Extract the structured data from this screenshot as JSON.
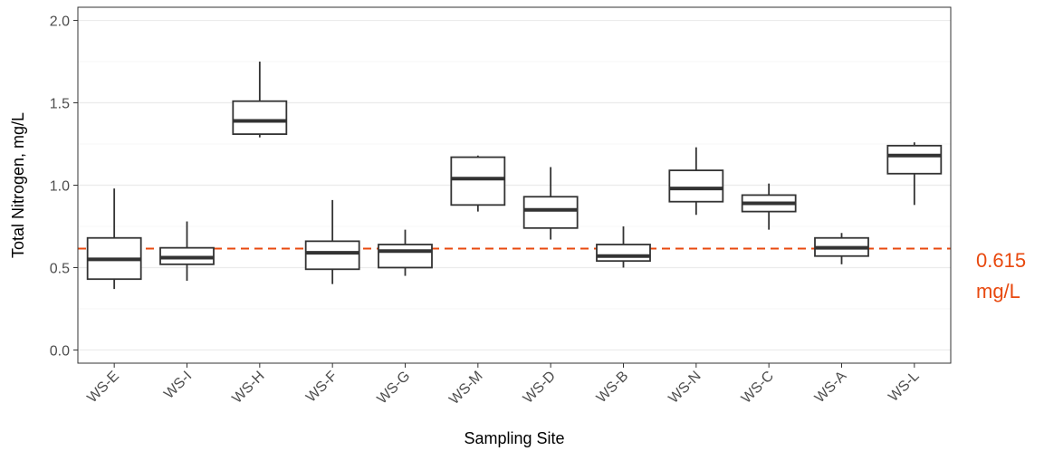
{
  "chart_data": {
    "type": "box",
    "xlabel": "Sampling Site",
    "ylabel": "Total Nitrogen, mg/L",
    "ylim": [
      -0.08,
      2.08
    ],
    "yticks": [
      0.0,
      0.5,
      1.0,
      1.5,
      2.0
    ],
    "ytick_labels": [
      "0.0",
      "0.5",
      "1.0",
      "1.5",
      "2.0"
    ],
    "grid": true,
    "categories": [
      "WS-E",
      "WS-I",
      "WS-H",
      "WS-F",
      "WS-G",
      "WS-M",
      "WS-D",
      "WS-B",
      "WS-N",
      "WS-C",
      "WS-A",
      "WS-L"
    ],
    "boxes": [
      {
        "site": "WS-E",
        "min": 0.37,
        "q1": 0.43,
        "median": 0.55,
        "q3": 0.68,
        "max": 0.98
      },
      {
        "site": "WS-I",
        "min": 0.42,
        "q1": 0.52,
        "median": 0.56,
        "q3": 0.62,
        "max": 0.78
      },
      {
        "site": "WS-H",
        "min": 1.29,
        "q1": 1.31,
        "median": 1.39,
        "q3": 1.51,
        "max": 1.75
      },
      {
        "site": "WS-F",
        "min": 0.4,
        "q1": 0.49,
        "median": 0.59,
        "q3": 0.66,
        "max": 0.91
      },
      {
        "site": "WS-G",
        "min": 0.45,
        "q1": 0.5,
        "median": 0.6,
        "q3": 0.64,
        "max": 0.73
      },
      {
        "site": "WS-M",
        "min": 0.84,
        "q1": 0.88,
        "median": 1.04,
        "q3": 1.17,
        "max": 1.18
      },
      {
        "site": "WS-D",
        "min": 0.67,
        "q1": 0.74,
        "median": 0.85,
        "q3": 0.93,
        "max": 1.11
      },
      {
        "site": "WS-B",
        "min": 0.5,
        "q1": 0.54,
        "median": 0.57,
        "q3": 0.64,
        "max": 0.75
      },
      {
        "site": "WS-N",
        "min": 0.82,
        "q1": 0.9,
        "median": 0.98,
        "q3": 1.09,
        "max": 1.23
      },
      {
        "site": "WS-C",
        "min": 0.73,
        "q1": 0.84,
        "median": 0.89,
        "q3": 0.94,
        "max": 1.01
      },
      {
        "site": "WS-A",
        "min": 0.52,
        "q1": 0.57,
        "median": 0.62,
        "q3": 0.68,
        "max": 0.71
      },
      {
        "site": "WS-L",
        "min": 0.88,
        "q1": 1.07,
        "median": 1.18,
        "q3": 1.24,
        "max": 1.26
      }
    ],
    "reference_line": {
      "value": 0.615,
      "label_line1": "0.615",
      "label_line2": "mg/L",
      "color": "#e8490f",
      "style": "dashed"
    }
  },
  "colors": {
    "box_stroke": "#333333",
    "grid": "#ebebeb",
    "panel_border": "#333333",
    "tick_text": "#4d4d4d"
  }
}
